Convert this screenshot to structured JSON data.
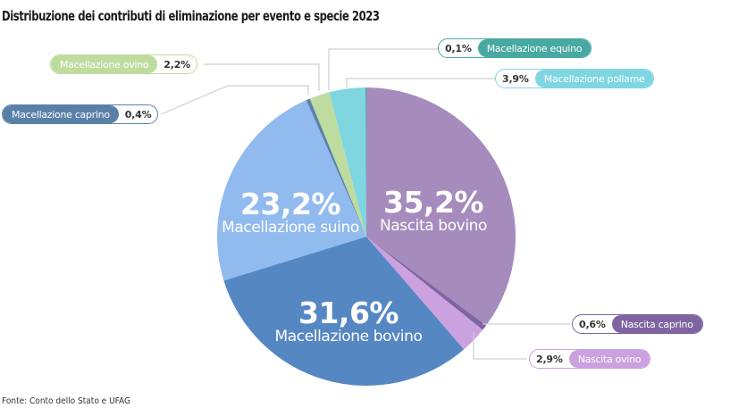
{
  "title": "Distribuzione dei contributi di eliminazione per evento e specie 2023",
  "source": "Fonte: Conto dello Stato e UFAG",
  "chart_data": {
    "type": "pie",
    "title": "Distribuzione dei contributi di eliminazione per evento e specie 2023",
    "start_angle_deg": 0,
    "direction": "clockwise",
    "unit": "%",
    "slices": [
      {
        "label": "Nascita bovino",
        "value": 35.2,
        "display": "35,2%",
        "color": "#a68bbd"
      },
      {
        "label": "Nascita caprino",
        "value": 0.6,
        "display": "0,6%",
        "color": "#7e64a0"
      },
      {
        "label": "Nascita ovino",
        "value": 2.9,
        "display": "2,9%",
        "color": "#cba1e0"
      },
      {
        "label": "Macellazione bovino",
        "value": 31.6,
        "display": "31,6%",
        "color": "#5587c3"
      },
      {
        "label": "Macellazione suino",
        "value": 23.2,
        "display": "23,2%",
        "color": "#91bbef"
      },
      {
        "label": "Macellazione caprino",
        "value": 0.4,
        "display": "0,4%",
        "color": "#5a80a8"
      },
      {
        "label": "Macellazione ovino",
        "value": 2.2,
        "display": "2,2%",
        "color": "#bedc9f"
      },
      {
        "label": "Macellazione pollame",
        "value": 3.9,
        "display": "3,9%",
        "color": "#7fd6e1"
      },
      {
        "label": "Macellazione equino",
        "value": 0.1,
        "display": "0,1%",
        "color": "#47a9a1"
      }
    ]
  },
  "inside_labels": {
    "nascita_bovino": {
      "pct": "35,2%",
      "name": "Nascita bovino"
    },
    "macellazione_bovino": {
      "pct": "31,6%",
      "name": "Macellazione bovino"
    },
    "macellazione_suino": {
      "pct": "23,2%",
      "name": "Macellazione suino"
    }
  },
  "callouts": {
    "macellazione_equino": {
      "value": "0,1%",
      "label": "Macellazione equino",
      "color": "#47a9a1"
    },
    "macellazione_pollame": {
      "value": "3,9%",
      "label": "Macellazione pollame",
      "color": "#7fd6e1"
    },
    "macellazione_ovino": {
      "value": "2,2%",
      "label": "Macellazione ovino",
      "color": "#bedc9f"
    },
    "macellazione_caprino": {
      "value": "0,4%",
      "label": "Macellazione caprino",
      "color": "#5a80a8"
    },
    "nascita_caprino": {
      "value": "0,6%",
      "label": "Nascita caprino",
      "color": "#7e64a0"
    },
    "nascita_ovino": {
      "value": "2,9%",
      "label": "Nascita ovino",
      "color": "#cba1e0"
    }
  }
}
